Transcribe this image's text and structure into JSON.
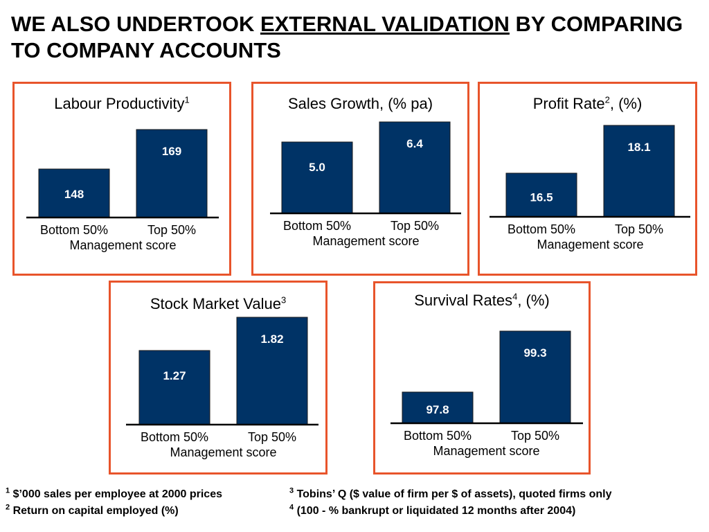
{
  "slide": {
    "title_pre": "WE ALSO UNDERTOOK ",
    "title_underlined": "EXTERNAL VALIDATION",
    "title_post": " BY COMPARING TO COMPANY ACCOUNTS"
  },
  "colors": {
    "bar": "#003366",
    "panel_border": "#e8542b",
    "bar_label": "#ffffff"
  },
  "chart_data": [
    {
      "type": "bar",
      "title": "Labour Productivity",
      "title_sup": "1",
      "title_suffix": "",
      "categories": [
        "Bottom 50%",
        "Top 50%"
      ],
      "values": [
        148,
        169
      ],
      "value_labels": [
        "148",
        "169"
      ],
      "xlabel": "Management score"
    },
    {
      "type": "bar",
      "title": "Sales Growth, (% pa)",
      "title_sup": "",
      "title_suffix": "",
      "categories": [
        "Bottom 50%",
        "Top 50%"
      ],
      "values": [
        5.0,
        6.4
      ],
      "value_labels": [
        "5.0",
        "6.4"
      ],
      "xlabel": "Management score"
    },
    {
      "type": "bar",
      "title": "Profit Rate",
      "title_sup": "2",
      "title_suffix": ", (%)",
      "categories": [
        "Bottom 50%",
        "Top 50%"
      ],
      "values": [
        16.5,
        18.1
      ],
      "value_labels": [
        "16.5",
        "18.1"
      ],
      "xlabel": "Management score"
    },
    {
      "type": "bar",
      "title": "Stock Market Value",
      "title_sup": "3",
      "title_suffix": "",
      "categories": [
        "Bottom 50%",
        "Top 50%"
      ],
      "values": [
        1.27,
        1.82
      ],
      "value_labels": [
        "1.27",
        "1.82"
      ],
      "xlabel": "Management score"
    },
    {
      "type": "bar",
      "title": "Survival Rates",
      "title_sup": "4",
      "title_suffix": ", (%)",
      "categories": [
        "Bottom 50%",
        "Top 50%"
      ],
      "values": [
        97.8,
        99.3
      ],
      "value_labels": [
        "97.8",
        "99.3"
      ],
      "xlabel": "Management score"
    }
  ],
  "footnotes": {
    "n1_num": "1",
    "n1_text": " $’000 sales per employee at 2000 prices",
    "n2_num": "2",
    "n2_text": " Return on capital employed (%)",
    "n3_num": "3",
    "n3_text": " Tobins’ Q ($ value of firm per $ of assets), quoted firms only",
    "n4_num": "4",
    "n4_text": " (100 - % bankrupt or liquidated 12 months after 2004)"
  }
}
